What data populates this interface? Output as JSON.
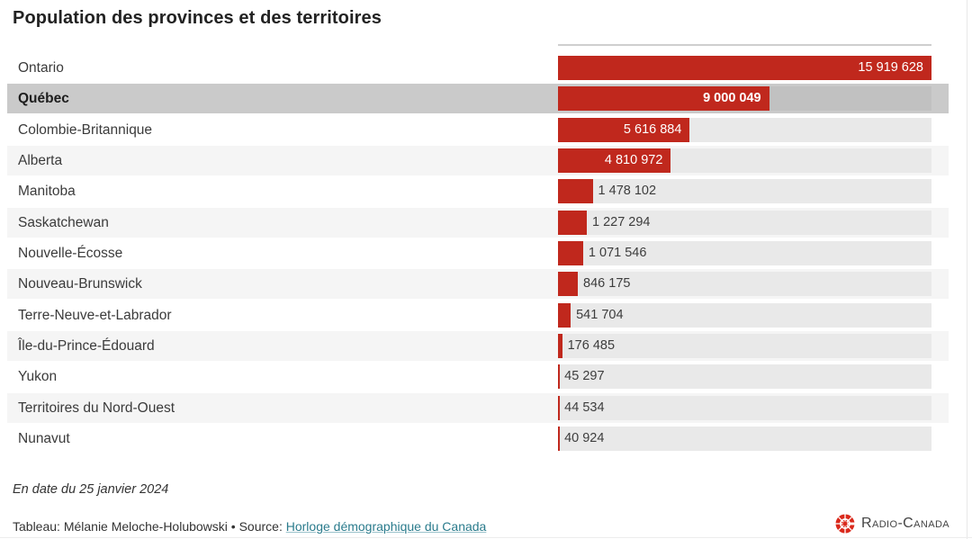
{
  "header": {
    "title": "Population des provinces et des territoires"
  },
  "chart_data": {
    "type": "bar",
    "orientation": "horizontal",
    "title": "Population des provinces et des territoires",
    "categories": [
      "Ontario",
      "Québec",
      "Colombie-Britannique",
      "Alberta",
      "Manitoba",
      "Saskatchewan",
      "Nouvelle-Écosse",
      "Nouveau-Brunswick",
      "Terre-Neuve-et-Labrador",
      "Île-du-Prince-Édouard",
      "Yukon",
      "Territoires du Nord-Ouest",
      "Nunavut"
    ],
    "values": [
      15919628,
      9000049,
      5616884,
      4810972,
      1478102,
      1227294,
      1071546,
      846175,
      541704,
      176485,
      45297,
      44534,
      40924
    ],
    "value_labels": [
      "15 919 628",
      "9 000 049",
      "5 616 884",
      "4 810 972",
      "1 478 102",
      "1 227 294",
      "1 071 546",
      "846 175",
      "541 704",
      "176 485",
      "45 297",
      "44 534",
      "40 924"
    ],
    "highlighted_category": "Québec",
    "xlim": [
      0,
      15919628
    ],
    "grid": false,
    "legend": false,
    "xlabel": "",
    "ylabel": ""
  },
  "footer": {
    "note": "En date du 25 janvier 2024",
    "credit_prefix": "Tableau: Mélanie Meloche-Holubowski • Source: ",
    "source_link": "Horloge démographique du Canada",
    "brand_wordmark": "Radio-Canada"
  },
  "colors": {
    "bar": "#c0281d",
    "track": "#e9e9e9",
    "row_alt": "#f5f5f5",
    "highlight_row": "#cacaca",
    "highlight_track": "#c1c1c1",
    "link": "#2a7b8c",
    "logo_red": "#da291c"
  },
  "icons": {
    "brand_logo": "radio-canada-gem-icon"
  }
}
